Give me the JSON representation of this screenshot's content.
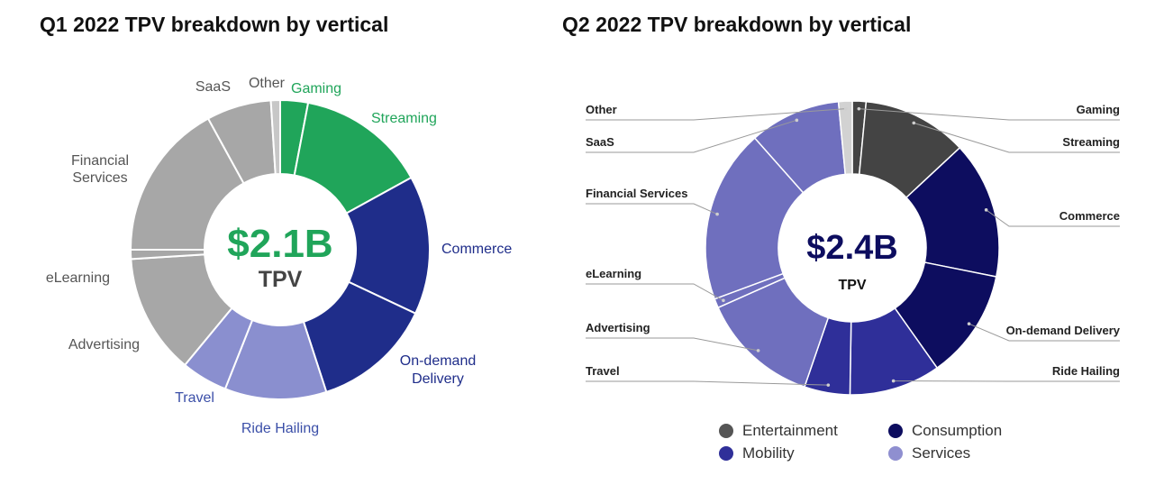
{
  "titles": {
    "q1": "Q1 2022 TPV breakdown by vertical",
    "q2": "Q2 2022 TPV breakdown by vertical"
  },
  "chart_data": [
    {
      "type": "pie",
      "variant": "donut",
      "title": "Q1 2022 TPV breakdown by vertical",
      "center_value": "$2.1B",
      "center_label": "TPV",
      "units": "approx. % share of TPV (estimated from slice angles)",
      "slices": [
        {
          "label": "Gaming",
          "value": 3,
          "color": "#20a55a",
          "label_color": "#20a55a"
        },
        {
          "label": "Streaming",
          "value": 14,
          "color": "#20a55a",
          "label_color": "#20a55a"
        },
        {
          "label": "Commerce",
          "value": 15,
          "color": "#1f2d8a",
          "label_color": "#1f2d8a"
        },
        {
          "label": "On-demand Delivery",
          "value": 13,
          "color": "#1f2d8a",
          "label_color": "#1f2d8a"
        },
        {
          "label": "Ride Hailing",
          "value": 11,
          "color": "#8a8fcf",
          "label_color": "#3b4fa8"
        },
        {
          "label": "Travel",
          "value": 5,
          "color": "#8a8fcf",
          "label_color": "#3b4fa8"
        },
        {
          "label": "Advertising",
          "value": 13,
          "color": "#a7a7a7",
          "label_color": "#555555"
        },
        {
          "label": "eLearning",
          "value": 1,
          "color": "#a7a7a7",
          "label_color": "#555555"
        },
        {
          "label": "Financial Services",
          "value": 17,
          "color": "#a7a7a7",
          "label_color": "#555555"
        },
        {
          "label": "SaaS",
          "value": 7,
          "color": "#a7a7a7",
          "label_color": "#555555"
        },
        {
          "label": "Other",
          "value": 1,
          "color": "#c7c7c7",
          "label_color": "#555555"
        }
      ]
    },
    {
      "type": "pie",
      "variant": "donut",
      "title": "Q2 2022 TPV breakdown by vertical",
      "center_value": "$2.4B",
      "center_label": "TPV",
      "units": "approx. % share of TPV (estimated from slice angles)",
      "slices": [
        {
          "label": "Gaming",
          "value": 1.5,
          "group": "Entertainment"
        },
        {
          "label": "Streaming",
          "value": 11.5,
          "group": "Entertainment"
        },
        {
          "label": "Commerce",
          "value": 15,
          "group": "Consumption"
        },
        {
          "label": "On-demand Delivery",
          "value": 12,
          "group": "Consumption"
        },
        {
          "label": "Ride Hailing",
          "value": 10,
          "group": "Mobility"
        },
        {
          "label": "Travel",
          "value": 5,
          "group": "Mobility"
        },
        {
          "label": "Advertising",
          "value": 13,
          "group": "Services"
        },
        {
          "label": "eLearning",
          "value": 1,
          "group": "Services"
        },
        {
          "label": "Financial Services",
          "value": 19,
          "group": "Services"
        },
        {
          "label": "SaaS",
          "value": 10,
          "group": "Services"
        },
        {
          "label": "Other",
          "value": 1.5,
          "group": "Other"
        }
      ],
      "group_colors": {
        "Entertainment": "#444444",
        "Consumption": "#0d0d5f",
        "Mobility": "#2f2f99",
        "Services": "#6f6fbe",
        "Other": "#d2d2d2"
      },
      "legend": [
        {
          "label": "Entertainment",
          "color": "#555555"
        },
        {
          "label": "Consumption",
          "color": "#0d0d5f"
        },
        {
          "label": "Mobility",
          "color": "#2f2f99"
        },
        {
          "label": "Services",
          "color": "#8f8fd0"
        }
      ]
    }
  ]
}
